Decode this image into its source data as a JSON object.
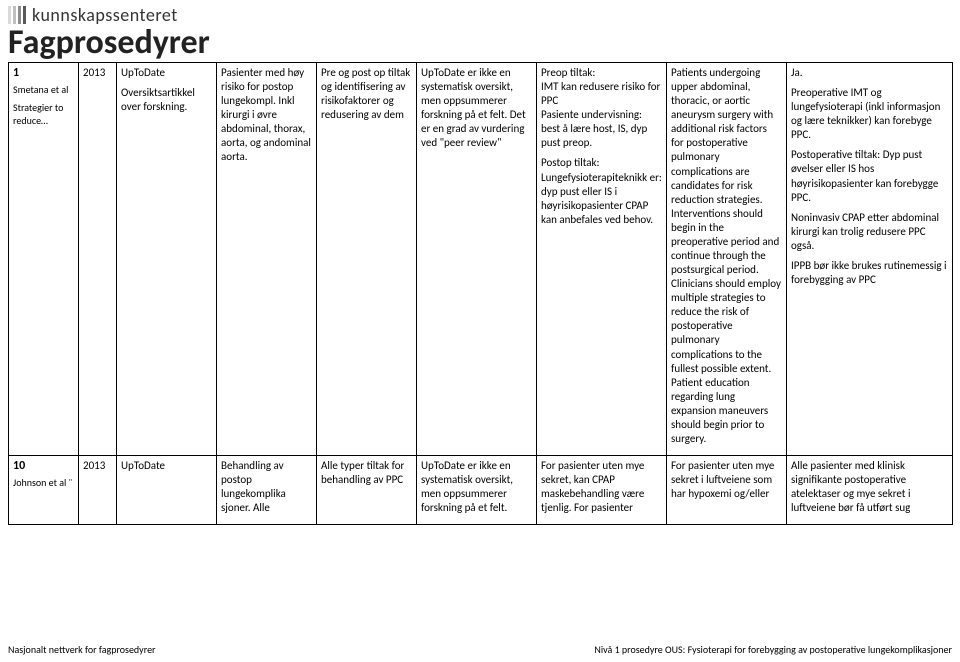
{
  "brand": {
    "word": "kunnskapssenteret",
    "bar_colors": [
      "#d9d9d9",
      "#bfbfbf",
      "#8c8c8c",
      "#595959"
    ],
    "title": "Fagprosedyrer",
    "title_color": "#222222"
  },
  "rows": [
    {
      "ref_num": "1",
      "ref_author": "Smetana et al",
      "ref_sub": "Strategier to reduce…",
      "year": "2013",
      "source": "UpToDate\n\nOversiktsartikkel over forskning.",
      "population": "Pasienter med høy risiko for postop lungekompl. Inkl kirurgi i øvre abdominal, thorax, aorta, og andominal aorta.",
      "intervention": "Pre og post op tiltak og identifisering av risikofaktorer og redusering av dem",
      "method": "UpToDate er ikke en systematisk oversikt, men oppsummerer forskning på et felt. Det er en grad av vurdering ved \"peer review\"",
      "results": "Preop tiltak:\nIMT kan redusere risiko for PPC\nPasiente undervisning: best å lære host, IS, dyp pust preop.\n\nPostop tiltak:\nLungefysioterapiteknikk er: dyp pust eller IS i høyrisikopasienter CPAP kan anbefales ved behov.",
      "evidence": "Patients undergoing upper abdominal, thoracic, or aortic aneurysm surgery with additional risk factors for postoperative pulmonary complications are candidates for risk reduction strategies. Interventions should begin in the preoperative period and continue through the postsurgical period. Clinicians should employ multiple strategies to reduce the risk of postoperative pulmonary complications to the fullest possible extent. Patient education regarding lung expansion maneuvers should begin prior to surgery.",
      "conclusion": "Ja.\n\nPreoperative IMT og lungefysioterapi (inkl informasjon og lære teknikker) kan forebyge PPC.\n\nPostoperative tiltak: Dyp pust øvelser eller IS hos høyrisikopasienter kan forebygge PPC.\n\nNoninvasiv CPAP etter abdominal kirurgi kan trolig redusere PPC også.\n\nIPPB bør ikke brukes rutinemessig i forebygging av PPC"
    },
    {
      "ref_num": "10",
      "ref_author": "Johnson et al ¨",
      "ref_sub": "",
      "year": "2013",
      "source": "UpToDate",
      "population": "Behandling av postop lungekomplika sjoner. Alle",
      "intervention": "Alle typer tiltak for behandling av PPC",
      "method": "UpToDate er ikke en systematisk oversikt, men oppsummerer forskning på et felt.",
      "results": "For pasienter uten mye sekret, kan CPAP maskebehandling være tjenlig. For pasienter",
      "evidence": "For pasienter uten mye sekret i luftveiene som har hypoxemi og/eller",
      "conclusion": "Alle pasienter med klinisk signifikante postoperative atelektaser og mye sekret i luftveiene bør få utført sug"
    }
  ],
  "footer": {
    "left": "Nasjonalt nettverk for fagprosedyrer",
    "right": "Nivå 1 prosedyre OUS: Fysioterapi for forebygging av postoperative lungekomplikasjoner"
  }
}
